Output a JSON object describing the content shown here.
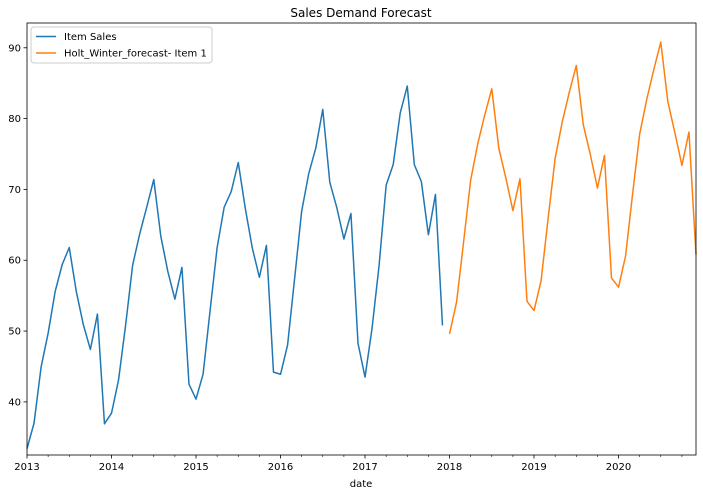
{
  "chart_data": {
    "type": "line",
    "title": "Sales Demand Forecast",
    "xlabel": "date",
    "ylabel": "",
    "x_ticks": [
      "2013",
      "2014",
      "2015",
      "2016",
      "2017",
      "2018",
      "2019",
      "2020"
    ],
    "y_ticks": [
      40,
      50,
      60,
      70,
      80,
      90
    ],
    "xlim": [
      "2013-01",
      "2020-12"
    ],
    "ylim": [
      32.5,
      93.5
    ],
    "grid": false,
    "legend_position": "upper-left",
    "series": [
      {
        "name": "Item Sales",
        "color": "#1f77b4",
        "x": [
          "2013-01",
          "2013-02",
          "2013-03",
          "2013-04",
          "2013-05",
          "2013-06",
          "2013-07",
          "2013-08",
          "2013-09",
          "2013-10",
          "2013-11",
          "2013-12",
          "2014-01",
          "2014-02",
          "2014-03",
          "2014-04",
          "2014-05",
          "2014-06",
          "2014-07",
          "2014-08",
          "2014-09",
          "2014-10",
          "2014-11",
          "2014-12",
          "2015-01",
          "2015-02",
          "2015-03",
          "2015-04",
          "2015-05",
          "2015-06",
          "2015-07",
          "2015-08",
          "2015-09",
          "2015-10",
          "2015-11",
          "2015-12",
          "2016-01",
          "2016-02",
          "2016-03",
          "2016-04",
          "2016-05",
          "2016-06",
          "2016-07",
          "2016-08",
          "2016-09",
          "2016-10",
          "2016-11",
          "2016-12",
          "2017-01",
          "2017-02",
          "2017-03",
          "2017-04",
          "2017-05",
          "2017-06",
          "2017-07",
          "2017-08",
          "2017-09",
          "2017-10",
          "2017-11",
          "2017-12"
        ],
        "values": [
          33.4,
          37.0,
          44.9,
          49.7,
          55.6,
          59.4,
          61.8,
          55.6,
          50.9,
          47.4,
          52.4,
          36.9,
          38.4,
          43.1,
          50.8,
          59.3,
          63.7,
          67.5,
          71.4,
          63.4,
          58.4,
          54.5,
          59.0,
          42.5,
          40.4,
          43.9,
          52.9,
          61.8,
          67.5,
          69.7,
          73.8,
          67.3,
          61.7,
          57.6,
          62.1,
          44.2,
          43.9,
          48.0,
          57.4,
          66.9,
          72.2,
          75.8,
          81.3,
          71.0,
          67.4,
          63.0,
          66.6,
          48.3,
          43.5,
          50.4,
          59.3,
          70.6,
          73.5,
          80.8,
          84.6,
          73.5,
          71.1,
          63.6,
          69.3,
          50.8
        ]
      },
      {
        "name": "Holt_Winter_forecast- Item 1",
        "color": "#ff7f0e",
        "x": [
          "2018-01",
          "2018-02",
          "2018-03",
          "2018-04",
          "2018-05",
          "2018-06",
          "2018-07",
          "2018-08",
          "2018-09",
          "2018-10",
          "2018-11",
          "2018-12",
          "2019-01",
          "2019-02",
          "2019-03",
          "2019-04",
          "2019-05",
          "2019-06",
          "2019-07",
          "2019-08",
          "2019-09",
          "2019-10",
          "2019-11",
          "2019-12",
          "2020-01",
          "2020-02",
          "2020-03",
          "2020-04",
          "2020-05",
          "2020-06",
          "2020-07",
          "2020-08",
          "2020-09",
          "2020-10",
          "2020-11",
          "2020-12"
        ],
        "values": [
          49.6,
          54.1,
          62.6,
          71.3,
          76.4,
          80.5,
          84.2,
          75.8,
          71.6,
          67.0,
          71.5,
          54.2,
          52.9,
          57.1,
          65.9,
          74.4,
          79.5,
          83.7,
          87.5,
          79.1,
          74.9,
          70.2,
          74.8,
          57.5,
          56.2,
          60.6,
          69.4,
          77.8,
          82.7,
          86.9,
          90.8,
          82.4,
          78.0,
          73.4,
          78.1,
          60.8
        ]
      }
    ]
  }
}
